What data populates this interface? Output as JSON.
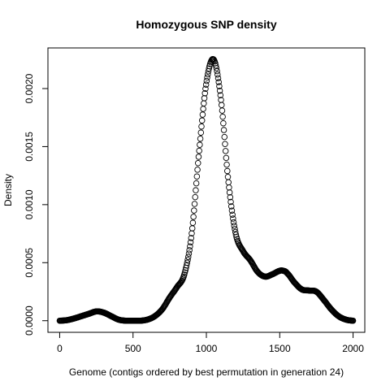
{
  "chart_data": {
    "type": "scatter",
    "title": "Homozygous SNP density",
    "xlabel": "Genome (contigs ordered by best permutation in generation 24)",
    "ylabel": "Density",
    "xlim": [
      -80,
      2080
    ],
    "ylim": [
      -0.0001,
      0.00235
    ],
    "xticks": [
      0,
      500,
      1000,
      1500,
      2000
    ],
    "xtick_labels": [
      "0",
      "500",
      "1000",
      "1500",
      "2000"
    ],
    "yticks": [
      0.0,
      0.0005,
      0.001,
      0.0015,
      0.002
    ],
    "ytick_labels": [
      "0.0000",
      "0.0005",
      "0.0010",
      "0.0015",
      "0.0020"
    ],
    "grid": false,
    "marker": "open-circle",
    "x_range": [
      0,
      2000
    ],
    "curve_knots": {
      "x": [
        0,
        50,
        100,
        150,
        200,
        250,
        300,
        350,
        400,
        450,
        500,
        550,
        600,
        650,
        700,
        750,
        800,
        850,
        900,
        950,
        1000,
        1050,
        1100,
        1150,
        1200,
        1250,
        1300,
        1350,
        1400,
        1450,
        1500,
        1525,
        1550,
        1600,
        1650,
        1700,
        1750,
        1800,
        1850,
        1900,
        1950,
        2000
      ],
      "y": [
        0.0,
        5e-06,
        2e-05,
        4e-05,
        6e-05,
        8e-05,
        7e-05,
        4e-05,
        1e-05,
        0.0,
        0.0,
        0.0,
        1e-05,
        4e-05,
        0.0001,
        0.0002,
        0.00029,
        0.0004,
        0.00075,
        0.00145,
        0.00205,
        0.00225,
        0.0019,
        0.0012,
        0.00075,
        0.0006,
        0.00052,
        0.00042,
        0.00038,
        0.0004,
        0.00043,
        0.00043,
        0.00041,
        0.00033,
        0.00027,
        0.00026,
        0.00025,
        0.00018,
        0.0001,
        4e-05,
        1e-05,
        0.0
      ]
    }
  }
}
